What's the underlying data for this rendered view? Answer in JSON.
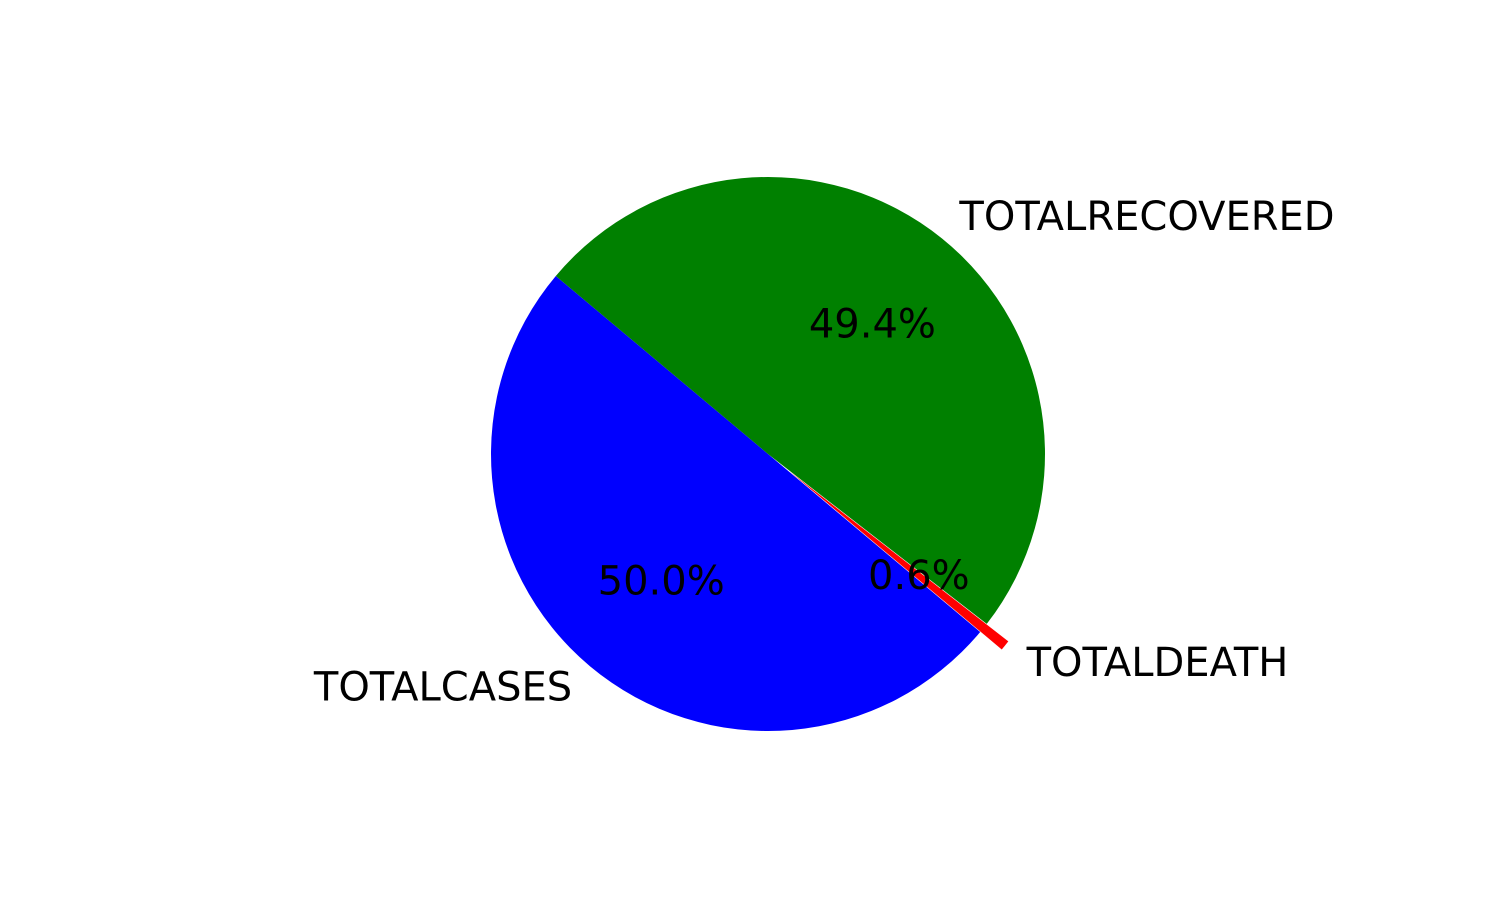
{
  "chart_data": {
    "type": "pie",
    "title": "",
    "categories": [
      "TOTALCASES",
      "TOTALDEATH",
      "TOTALRECOVERED"
    ],
    "values": [
      50.0,
      0.6,
      49.4
    ],
    "value_labels": [
      "50.0%",
      "0.6%",
      "49.4%"
    ],
    "colors": [
      "#0000ff",
      "#ff0000",
      "#008000"
    ],
    "exploded": [
      false,
      true,
      false
    ],
    "start_angle_deg": 140,
    "direction": "counterclockwise",
    "legend": "none"
  }
}
